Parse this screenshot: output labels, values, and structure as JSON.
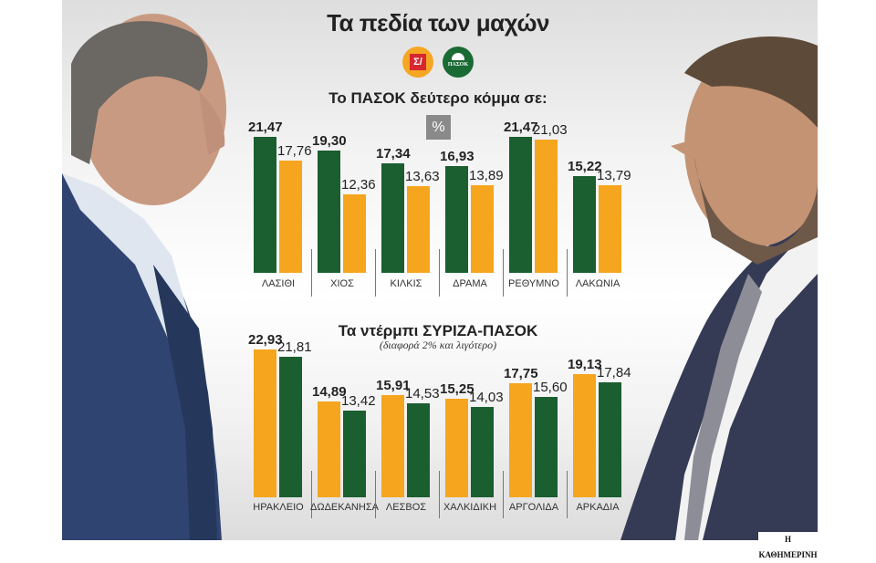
{
  "title": "Τα πεδία των μαχών",
  "logos": [
    {
      "name": "syriza-logo",
      "glyph": "Σ/"
    },
    {
      "name": "pasok-logo",
      "glyph": "ΠΑΣΟΚ"
    }
  ],
  "unit_badge": "%",
  "credit": "Η ΚΑΘΗΜΕΡΙΝΗ",
  "colors": {
    "pasok": "#1b5e30",
    "syriza": "#f6a51e"
  },
  "chart_data": [
    {
      "type": "bar",
      "title": "Το ΠΑΣΟΚ δεύτερο κόμμα σε:",
      "unit": "%",
      "categories": [
        "ΛΑΣΙΘΙ",
        "ΧΙΟΣ",
        "ΚΙΛΚΙΣ",
        "ΔΡΑΜΑ",
        "ΡΕΘΥΜΝΟ",
        "ΛΑΚΩΝΙΑ"
      ],
      "series": [
        {
          "name": "ΠΑΣΟΚ",
          "color": "#1b5e30",
          "values": [
            21.47,
            19.3,
            17.34,
            16.93,
            21.47,
            15.22
          ],
          "labels": [
            "21,47",
            "19,30",
            "17,34",
            "16,93",
            "21,47",
            "15,22"
          ]
        },
        {
          "name": "ΣΥΡΙΖΑ",
          "color": "#f6a51e",
          "values": [
            17.76,
            12.36,
            13.63,
            13.89,
            21.03,
            13.79
          ],
          "labels": [
            "17,76",
            "12,36",
            "13,63",
            "13,89",
            "21,03",
            "13,79"
          ]
        }
      ],
      "grid": false
    },
    {
      "type": "bar",
      "title": "Τα ντέρμπι ΣΥΡΙΖΑ-ΠΑΣΟΚ",
      "subtitle": "(διαφορά 2% και λιγότερο)",
      "unit": "%",
      "categories": [
        "ΗΡΑΚΛΕΙΟ",
        "ΔΩΔΕΚΑΝΗΣΑ",
        "ΛΕΣΒΟΣ",
        "ΧΑΛΚΙΔΙΚΗ",
        "ΑΡΓΟΛΙΔΑ",
        "ΑΡΚΑΔΙΑ"
      ],
      "series": [
        {
          "name": "ΣΥΡΙΖΑ",
          "color": "#f6a51e",
          "values": [
            22.93,
            14.89,
            15.91,
            15.25,
            17.75,
            19.13
          ],
          "labels": [
            "22,93",
            "14,89",
            "15,91",
            "15,25",
            "17,75",
            "19,13"
          ]
        },
        {
          "name": "ΠΑΣΟΚ",
          "color": "#1b5e30",
          "values": [
            21.81,
            13.42,
            14.53,
            14.03,
            15.6,
            17.84
          ],
          "labels": [
            "21,81",
            "13,42",
            "14,53",
            "14,03",
            "15,60",
            "17,84"
          ]
        }
      ],
      "grid": false
    }
  ]
}
